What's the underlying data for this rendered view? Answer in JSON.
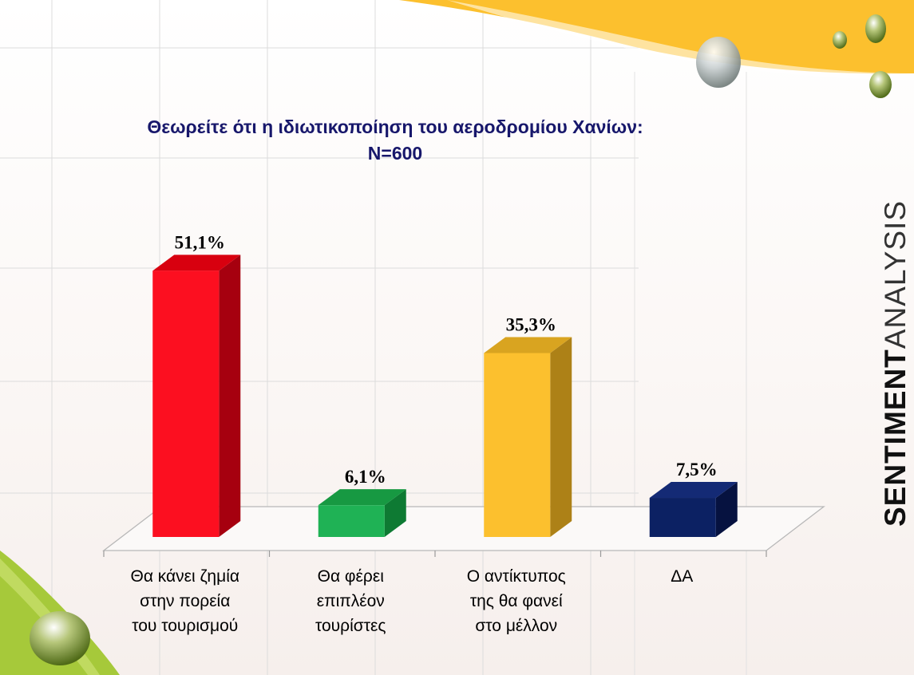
{
  "title": {
    "line1": "Θεωρείτε ότι η ιδιωτικοποίηση του αεροδρομίου Χανίων:",
    "line2": "Ν=600"
  },
  "brand": {
    "word1": "SENTIMENT",
    "word2": "ANALYSIS"
  },
  "colors": {
    "title": "#17176b",
    "accent_yellow": "#fcc02e",
    "accent_green": "#a6c93a"
  },
  "chart_data": {
    "type": "bar",
    "title": "Θεωρείτε ότι η ιδιωτικοποίηση του αεροδρομίου Χανίων:",
    "subtitle": "Ν=600",
    "categories": [
      [
        "Θα κάνει ζημία",
        "στην πορεία",
        "του τουρισμού"
      ],
      [
        "Θα φέρει",
        "επιπλέον",
        "τουρίστες"
      ],
      [
        "Ο αντίκτυπος",
        "της θα φανεί",
        "στο μέλλον"
      ],
      [
        "ΔΑ"
      ]
    ],
    "values": [
      51.1,
      6.1,
      35.3,
      7.5
    ],
    "value_labels": [
      "51,1%",
      "6,1%",
      "35,3%",
      "7,5%"
    ],
    "colors": [
      "#fc0f20",
      "#1fb255",
      "#fcc02e",
      "#0c2163"
    ],
    "side_colors": [
      "#a6000f",
      "#0e7a33",
      "#ad8117",
      "#061240"
    ],
    "top_colors": [
      "#d8000f",
      "#179942",
      "#d9a420",
      "#142a75"
    ],
    "ylim": [
      0,
      60
    ],
    "grid": true,
    "legend": "none"
  }
}
